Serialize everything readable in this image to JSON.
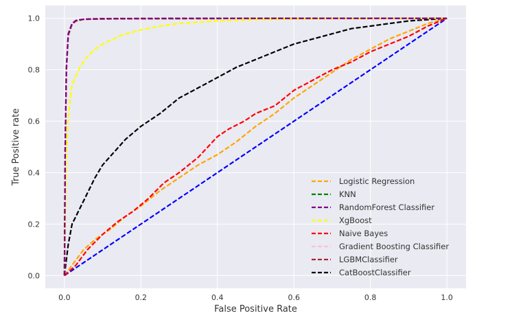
{
  "chart_data": {
    "type": "line",
    "title": "",
    "xlabel": "False Positive Rate",
    "ylabel": "True Positive rate",
    "xlim": [
      -0.05,
      1.05
    ],
    "ylim": [
      -0.05,
      1.05
    ],
    "xticks": [
      0.0,
      0.2,
      0.4,
      0.6,
      0.8,
      1.0
    ],
    "yticks": [
      0.0,
      0.2,
      0.4,
      0.6,
      0.8,
      1.0
    ],
    "xtick_labels": [
      "0.0",
      "0.2",
      "0.4",
      "0.6",
      "0.8",
      "1.0"
    ],
    "ytick_labels": [
      "0.0",
      "0.2",
      "0.4",
      "0.6",
      "0.8",
      "1.0"
    ],
    "grid": true,
    "background": "#eaeaf2",
    "legend_position": "lower-right",
    "series": [
      {
        "name": "Logistic Regression",
        "color": "#ffa500",
        "x": [
          0,
          0.02,
          0.05,
          0.08,
          0.12,
          0.16,
          0.2,
          0.25,
          0.3,
          0.35,
          0.4,
          0.45,
          0.5,
          0.55,
          0.6,
          0.65,
          0.7,
          0.75,
          0.8,
          0.85,
          0.9,
          0.95,
          1.0
        ],
        "y": [
          0,
          0.04,
          0.1,
          0.14,
          0.18,
          0.23,
          0.27,
          0.33,
          0.38,
          0.43,
          0.47,
          0.52,
          0.58,
          0.63,
          0.69,
          0.74,
          0.79,
          0.84,
          0.88,
          0.92,
          0.95,
          0.98,
          1.0
        ]
      },
      {
        "name": "KNN",
        "color": "#008000",
        "x": [
          0,
          0.002,
          0.005,
          0.01,
          0.02,
          0.03,
          0.05,
          0.1,
          0.3,
          0.6,
          1.0
        ],
        "y": [
          0,
          0.5,
          0.8,
          0.93,
          0.975,
          0.99,
          0.996,
          0.998,
          0.999,
          1.0,
          1.0
        ]
      },
      {
        "name": "RandomForest Classifier",
        "color": "#800080",
        "x": [
          0,
          0.002,
          0.005,
          0.01,
          0.02,
          0.03,
          0.05,
          0.1,
          0.3,
          0.6,
          1.0
        ],
        "y": [
          0,
          0.5,
          0.8,
          0.94,
          0.98,
          0.992,
          0.997,
          0.999,
          1.0,
          1.0,
          1.0
        ]
      },
      {
        "name": "XgBoost",
        "color": "#ffff00",
        "x": [
          0,
          0.005,
          0.01,
          0.02,
          0.04,
          0.06,
          0.08,
          0.1,
          0.15,
          0.2,
          0.25,
          0.3,
          0.4,
          0.5,
          0.7,
          1.0
        ],
        "y": [
          0,
          0.45,
          0.62,
          0.74,
          0.81,
          0.85,
          0.88,
          0.9,
          0.935,
          0.955,
          0.97,
          0.98,
          0.99,
          0.995,
          0.999,
          1.0
        ]
      },
      {
        "name": "Naive Bayes",
        "color": "#ff0000",
        "x": [
          0,
          0.03,
          0.06,
          0.1,
          0.14,
          0.18,
          0.22,
          0.26,
          0.3,
          0.35,
          0.4,
          0.43,
          0.47,
          0.5,
          0.55,
          0.6,
          0.65,
          0.7,
          0.75,
          0.8,
          0.85,
          0.9,
          0.95,
          1.0
        ],
        "y": [
          0,
          0.04,
          0.1,
          0.16,
          0.21,
          0.25,
          0.3,
          0.36,
          0.4,
          0.46,
          0.54,
          0.57,
          0.6,
          0.63,
          0.66,
          0.72,
          0.76,
          0.8,
          0.83,
          0.87,
          0.9,
          0.93,
          0.97,
          1.0
        ]
      },
      {
        "name": "Gradient Boosting Classifier",
        "color": "#ffc0cb",
        "x": [
          0,
          0.002,
          0.005,
          0.01,
          0.02,
          0.03,
          0.05,
          0.1,
          0.3,
          0.6,
          1.0
        ],
        "y": [
          0,
          0.48,
          0.79,
          0.93,
          0.975,
          0.99,
          0.996,
          0.998,
          0.999,
          1.0,
          1.0
        ]
      },
      {
        "name": "LGBMClassifier",
        "color": "#a52a2a",
        "x": [
          0,
          0.002,
          0.005,
          0.01,
          0.02,
          0.03,
          0.05,
          0.1,
          0.3,
          0.6,
          1.0
        ],
        "y": [
          0,
          0.5,
          0.8,
          0.935,
          0.978,
          0.99,
          0.996,
          0.998,
          0.999,
          1.0,
          1.0
        ]
      },
      {
        "name": "CatBoostClassifier",
        "color": "#000000",
        "x": [
          0,
          0.01,
          0.02,
          0.04,
          0.06,
          0.08,
          0.1,
          0.13,
          0.16,
          0.2,
          0.25,
          0.3,
          0.35,
          0.4,
          0.45,
          0.5,
          0.55,
          0.6,
          0.65,
          0.7,
          0.75,
          0.8,
          0.85,
          0.9,
          0.95,
          1.0
        ],
        "y": [
          0,
          0.12,
          0.2,
          0.26,
          0.32,
          0.38,
          0.43,
          0.48,
          0.53,
          0.58,
          0.63,
          0.69,
          0.73,
          0.77,
          0.81,
          0.84,
          0.87,
          0.9,
          0.92,
          0.94,
          0.96,
          0.97,
          0.98,
          0.99,
          0.995,
          1.0
        ]
      },
      {
        "name": "",
        "color": "#0000ff",
        "x": [
          0,
          1.0
        ],
        "y": [
          0,
          1.0
        ]
      }
    ]
  }
}
